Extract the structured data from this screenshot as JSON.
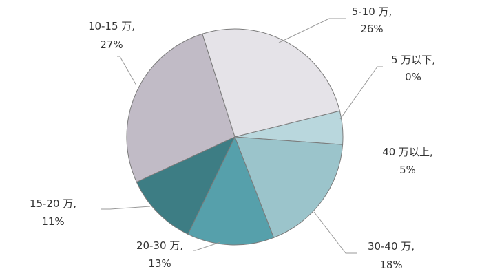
{
  "chart_data": {
    "type": "pie",
    "slices": [
      {
        "label": "5-10 万,",
        "percent_label": "26%",
        "value": 26,
        "color": "#e5e3e8"
      },
      {
        "label": "5 万以下,",
        "percent_label": "0%",
        "value": 0,
        "color": "#e5e3e8"
      },
      {
        "label": "40 万以上,",
        "percent_label": "5%",
        "value": 5,
        "color": "#b9d7dd"
      },
      {
        "label": "30-40 万,",
        "percent_label": "18%",
        "value": 18,
        "color": "#9bc4cb"
      },
      {
        "label": "20-30 万,",
        "percent_label": "13%",
        "value": 13,
        "color": "#56a0ab"
      },
      {
        "label": "15-20 万,",
        "percent_label": "11%",
        "value": 11,
        "color": "#3d7d84"
      },
      {
        "label": "10-15 万,",
        "percent_label": "27%",
        "value": 27,
        "color": "#c1bbc6"
      }
    ]
  }
}
